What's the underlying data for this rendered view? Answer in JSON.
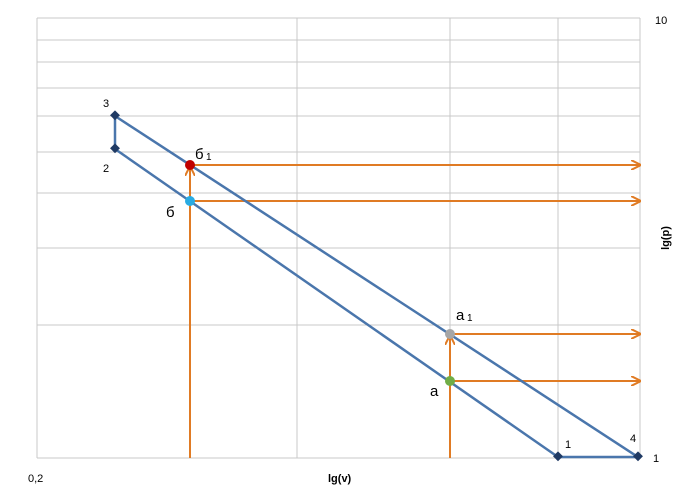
{
  "axes": {
    "y_top": "10",
    "y_bottom": "1",
    "x_left": "0,2",
    "x_title": "lg(v)",
    "y_title": "lg(p)"
  },
  "points": [
    {
      "label": "3"
    },
    {
      "label": "2"
    },
    {
      "label": "1"
    },
    {
      "label": "4"
    }
  ],
  "markers": [
    {
      "label": "б",
      "sub": "1"
    },
    {
      "label": "б"
    },
    {
      "label": "а",
      "sub": "1"
    },
    {
      "label": "а"
    }
  ]
}
